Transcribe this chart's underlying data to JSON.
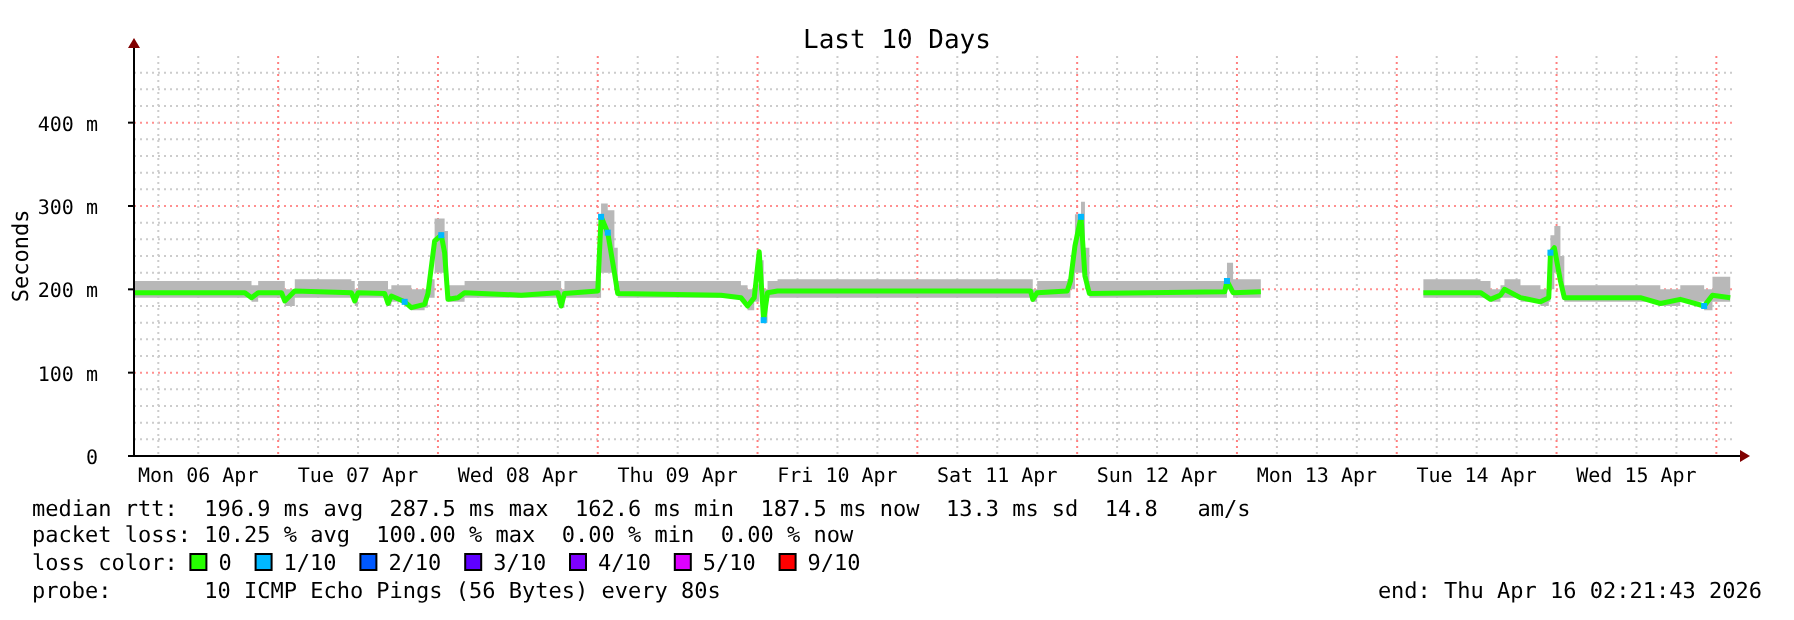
{
  "chart_data": {
    "type": "line",
    "title": "Last 10 Days",
    "ylabel": "Seconds",
    "legend_title": "loss color:",
    "legend": "bottom",
    "grid": true,
    "xlim": [
      "2026-04-06T02:21",
      "2026-04-16T02:21"
    ],
    "ylim": [
      0,
      480
    ],
    "yticks": [
      {
        "value": 0,
        "label": "0"
      },
      {
        "value": 20,
        "label": null
      },
      {
        "value": 40,
        "label": null
      },
      {
        "value": 60,
        "label": null
      },
      {
        "value": 80,
        "label": null
      },
      {
        "value": 100,
        "label": "100 m"
      },
      {
        "value": 120,
        "label": null
      },
      {
        "value": 140,
        "label": null
      },
      {
        "value": 160,
        "label": null
      },
      {
        "value": 180,
        "label": null
      },
      {
        "value": 200,
        "label": "200 m"
      },
      {
        "value": 220,
        "label": null
      },
      {
        "value": 240,
        "label": null
      },
      {
        "value": 260,
        "label": null
      },
      {
        "value": 280,
        "label": null
      },
      {
        "value": 300,
        "label": "300 m"
      },
      {
        "value": 320,
        "label": null
      },
      {
        "value": 340,
        "label": null
      },
      {
        "value": 360,
        "label": null
      },
      {
        "value": 380,
        "label": null
      },
      {
        "value": 400,
        "label": "400 m"
      },
      {
        "value": 420,
        "label": null
      },
      {
        "value": 440,
        "label": null
      },
      {
        "value": 460,
        "label": null
      }
    ],
    "xticks": [
      {
        "value": "2026-04-06T06:00",
        "label": null
      },
      {
        "value": "2026-04-06T12:00",
        "label": "Mon 06 Apr"
      },
      {
        "value": "2026-04-06T18:00",
        "label": null
      },
      {
        "value": "2026-04-07T06:00",
        "label": null
      },
      {
        "value": "2026-04-07T12:00",
        "label": "Tue 07 Apr"
      },
      {
        "value": "2026-04-07T18:00",
        "label": null
      },
      {
        "value": "2026-04-08T06:00",
        "label": null
      },
      {
        "value": "2026-04-08T12:00",
        "label": "Wed 08 Apr"
      },
      {
        "value": "2026-04-08T18:00",
        "label": null
      },
      {
        "value": "2026-04-09T06:00",
        "label": null
      },
      {
        "value": "2026-04-09T12:00",
        "label": "Thu 09 Apr"
      },
      {
        "value": "2026-04-09T18:00",
        "label": null
      },
      {
        "value": "2026-04-10T06:00",
        "label": null
      },
      {
        "value": "2026-04-10T12:00",
        "label": "Fri 10 Apr"
      },
      {
        "value": "2026-04-10T18:00",
        "label": null
      },
      {
        "value": "2026-04-11T06:00",
        "label": null
      },
      {
        "value": "2026-04-11T12:00",
        "label": "Sat 11 Apr"
      },
      {
        "value": "2026-04-11T18:00",
        "label": null
      },
      {
        "value": "2026-04-12T06:00",
        "label": null
      },
      {
        "value": "2026-04-12T12:00",
        "label": "Sun 12 Apr"
      },
      {
        "value": "2026-04-12T18:00",
        "label": null
      },
      {
        "value": "2026-04-13T06:00",
        "label": null
      },
      {
        "value": "2026-04-13T12:00",
        "label": "Mon 13 Apr"
      },
      {
        "value": "2026-04-13T18:00",
        "label": null
      },
      {
        "value": "2026-04-14T06:00",
        "label": null
      },
      {
        "value": "2026-04-14T12:00",
        "label": "Tue 14 Apr"
      },
      {
        "value": "2026-04-14T18:00",
        "label": null
      },
      {
        "value": "2026-04-15T06:00",
        "label": null
      },
      {
        "value": "2026-04-15T12:00",
        "label": "Wed 15 Apr"
      },
      {
        "value": "2026-04-15T18:00",
        "label": null
      }
    ],
    "ref_lines": [
      {
        "axis": "x",
        "value": "2026-04-07T00:00",
        "color": "#ff8080",
        "line_style": "dotted"
      },
      {
        "axis": "x",
        "value": "2026-04-08T00:00",
        "color": "#ff8080",
        "line_style": "dotted"
      },
      {
        "axis": "x",
        "value": "2026-04-09T00:00",
        "color": "#ff8080",
        "line_style": "dotted"
      },
      {
        "axis": "x",
        "value": "2026-04-10T00:00",
        "color": "#ff8080",
        "line_style": "dotted"
      },
      {
        "axis": "x",
        "value": "2026-04-11T00:00",
        "color": "#ff8080",
        "line_style": "dotted"
      },
      {
        "axis": "x",
        "value": "2026-04-12T00:00",
        "color": "#ff8080",
        "line_style": "dotted"
      },
      {
        "axis": "x",
        "value": "2026-04-13T00:00",
        "color": "#ff8080",
        "line_style": "dotted"
      },
      {
        "axis": "x",
        "value": "2026-04-14T00:00",
        "color": "#ff8080",
        "line_style": "dotted"
      },
      {
        "axis": "x",
        "value": "2026-04-15T00:00",
        "color": "#ff8080",
        "line_style": "dotted"
      },
      {
        "axis": "x",
        "value": "2026-04-16T00:00",
        "color": "#ff8080",
        "line_style": "dotted"
      }
    ],
    "series": [
      {
        "name": "0",
        "color": "#26ff00",
        "marker": "none",
        "x": [
          "2026-04-06T02:30",
          "2026-04-06T19:00",
          "2026-04-06T20:00",
          "2026-04-06T21:00",
          "2026-04-07T00:30",
          "2026-04-07T01:00",
          "2026-04-07T02:30",
          "2026-04-07T11:00",
          "2026-04-07T11:30",
          "2026-04-07T12:00",
          "2026-04-07T16:00",
          "2026-04-07T16:30",
          "2026-04-07T17:00",
          "2026-04-07T19:00",
          "2026-04-07T20:00",
          "2026-04-07T22:00",
          "2026-04-07T22:30",
          "2026-04-07T23:30",
          "2026-04-08T00:30",
          "2026-04-08T01:00",
          "2026-04-08T01:30",
          "2026-04-08T03:00",
          "2026-04-08T04:00",
          "2026-04-08T12:30",
          "2026-04-08T18:00",
          "2026-04-08T18:30",
          "2026-04-08T19:00",
          "2026-04-09T00:00",
          "2026-04-09T00:30",
          "2026-04-09T01:30",
          "2026-04-09T02:30",
          "2026-04-09T03:00",
          "2026-04-09T18:30",
          "2026-04-09T21:30",
          "2026-04-09T22:30",
          "2026-04-09T23:30",
          "2026-04-10T00:15",
          "2026-04-10T00:55",
          "2026-04-10T01:30",
          "2026-04-10T03:00",
          "2026-04-11T17:00",
          "2026-04-11T17:20",
          "2026-04-11T18:00",
          "2026-04-11T22:30",
          "2026-04-11T23:00",
          "2026-04-11T23:40",
          "2026-04-12T00:35",
          "2026-04-12T01:10",
          "2026-04-12T01:50",
          "2026-04-12T22:10",
          "2026-04-12T22:30",
          "2026-04-12T23:25",
          "2026-04-13T03:35",
          "2026-04-13T12:00",
          "2026-04-14T04:00",
          "2026-04-14T12:35",
          "2026-04-14T14:05",
          "2026-04-14T15:35",
          "2026-04-14T16:10",
          "2026-04-14T18:35",
          "2026-04-14T21:35",
          "2026-04-14T22:50",
          "2026-04-14T23:05",
          "2026-04-14T23:40",
          "2026-04-15T00:35",
          "2026-04-15T01:10",
          "2026-04-15T12:35",
          "2026-04-15T15:35",
          "2026-04-15T18:35",
          "2026-04-15T22:10",
          "2026-04-15T23:25",
          "2026-04-16T02:05"
        ],
        "values": [
          196,
          196,
          190,
          196,
          196,
          186,
          198,
          196,
          186,
          196,
          195,
          183,
          192,
          185,
          178,
          182,
          195,
          258,
          265,
          244,
          188,
          190,
          196,
          193,
          196,
          180,
          195,
          198,
          287,
          268,
          220,
          195,
          193,
          190,
          180,
          190,
          245,
          163,
          196,
          198,
          198,
          188,
          196,
          198,
          210,
          252,
          287,
          216,
          195,
          197,
          210,
          196,
          197,
          null,
          196,
          196,
          188,
          193,
          200,
          190,
          185,
          190,
          244,
          250,
          210,
          190,
          190,
          183,
          188,
          180,
          193,
          190
        ],
        "lower": [
          190,
          190,
          185,
          190,
          190,
          180,
          190,
          190,
          180,
          190,
          190,
          180,
          185,
          180,
          175,
          178,
          190,
          220,
          220,
          210,
          185,
          185,
          190,
          190,
          190,
          178,
          190,
          190,
          220,
          220,
          200,
          190,
          190,
          185,
          175,
          185,
          200,
          160,
          190,
          190,
          190,
          185,
          190,
          190,
          200,
          220,
          220,
          200,
          190,
          190,
          200,
          190,
          190,
          null,
          190,
          190,
          185,
          190,
          190,
          185,
          180,
          185,
          200,
          220,
          200,
          185,
          185,
          180,
          185,
          175,
          185,
          185
        ],
        "upper": [
          210,
          210,
          205,
          210,
          210,
          200,
          212,
          210,
          200,
          210,
          210,
          200,
          205,
          205,
          200,
          200,
          212,
          285,
          285,
          270,
          205,
          205,
          210,
          210,
          210,
          200,
          210,
          212,
          303,
          295,
          250,
          210,
          210,
          205,
          200,
          205,
          235,
          200,
          210,
          212,
          212,
          200,
          210,
          212,
          230,
          290,
          305,
          250,
          210,
          212,
          232,
          212,
          212,
          null,
          212,
          210,
          200,
          205,
          212,
          205,
          200,
          205,
          265,
          276,
          240,
          205,
          205,
          200,
          205,
          200,
          215,
          222
        ]
      },
      {
        "name": "1/10",
        "type": "scatter",
        "color": "#00b8ff",
        "marker": "square",
        "x": [
          "2026-04-07T19:00",
          "2026-04-08T00:30",
          "2026-04-09T00:30",
          "2026-04-09T01:30",
          "2026-04-10T00:55",
          "2026-04-12T00:35",
          "2026-04-12T22:30",
          "2026-04-14T23:05",
          "2026-04-15T22:10"
        ],
        "values": [
          185,
          265,
          287,
          268,
          163,
          287,
          210,
          244,
          180
        ]
      },
      {
        "name": "2/10",
        "type": "scatter",
        "color": "#0059ff",
        "marker": "square"
      },
      {
        "name": "3/10",
        "type": "scatter",
        "color": "#5e00ff",
        "marker": "square"
      },
      {
        "name": "4/10",
        "type": "scatter",
        "color": "#7e00ff",
        "marker": "square"
      },
      {
        "name": "5/10",
        "type": "scatter",
        "color": "#dd00ff",
        "marker": "square"
      },
      {
        "name": "9/10",
        "type": "scatter",
        "color": "#ff0000",
        "marker": "square"
      }
    ],
    "annotations": [
      "median rtt:  196.9 ms avg  287.5 ms max  162.6 ms min  187.5 ms now  13.3 ms sd  14.8   am/s",
      "packet loss: 10.25 % avg  100.00 % max  0.00 % min  0.00 % now",
      "probe:       10 ICMP Echo Pings (56 Bytes) every 80s",
      "end: Thu Apr 16 02:21:43 2026"
    ]
  }
}
